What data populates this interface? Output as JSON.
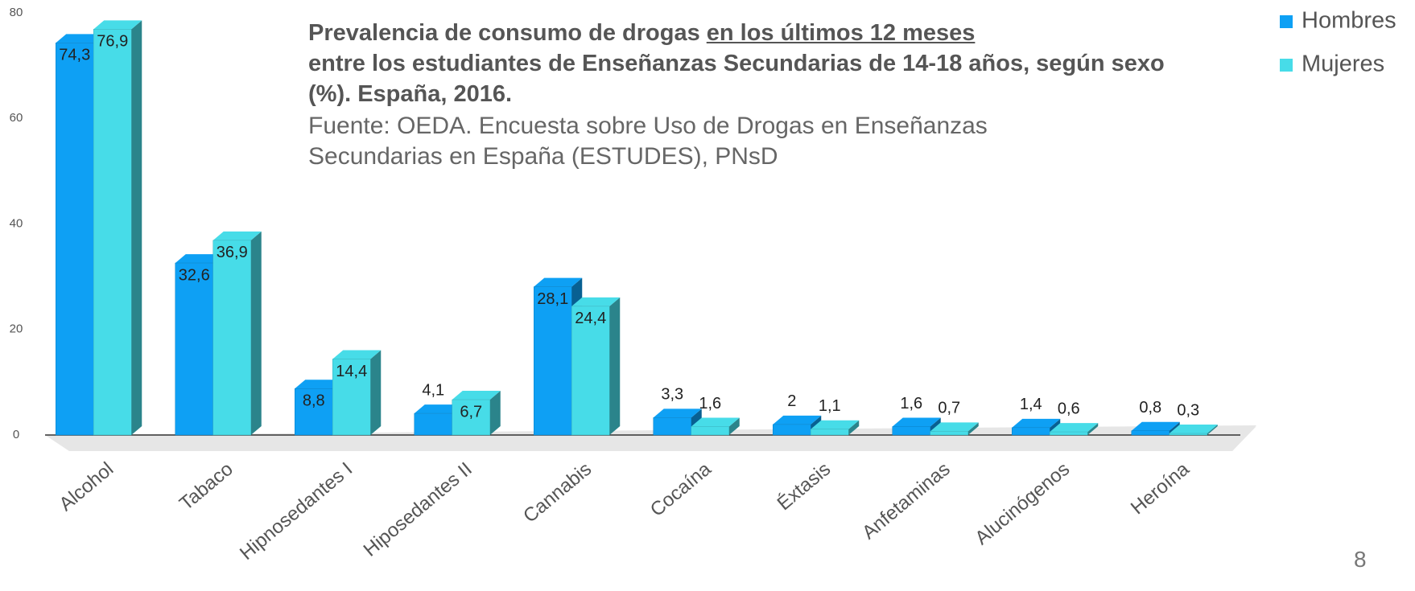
{
  "chart_data": {
    "type": "bar3d",
    "title": [
      "Prevalencia de consumo de drogas",
      "en los últimos 12 meses",
      "entre los estudiantes de Enseñanzas Secundarias de 14-18 años, según sexo (%). España, 2016."
    ],
    "subtitle": "Fuente: OEDA. Encuesta sobre Uso de Drogas en Enseñanzas Secundarias en España (ESTUDES), PNsD",
    "categories": [
      "Alcohol",
      "Tabaco",
      "Hipnosedantes I",
      "Hiposedantes II",
      "Cannabis",
      "Cocaína",
      "Éxtasis",
      "Anfetaminas",
      "Alucinógenos",
      "Heroína"
    ],
    "series": [
      {
        "name": "Hombres",
        "color": "#0ea0f4",
        "values": [
          74.3,
          32.6,
          8.8,
          4.1,
          28.1,
          3.3,
          2,
          1.6,
          1.4,
          0.8
        ],
        "value_labels": [
          "74,3",
          "32,6",
          "8,8",
          "4,1",
          "28,1",
          "3,3",
          "2",
          "1,6",
          "1,4",
          "0,8"
        ]
      },
      {
        "name": "Mujeres",
        "color": "#47dce8",
        "values": [
          76.9,
          36.9,
          14.4,
          6.7,
          24.4,
          1.6,
          1.1,
          0.7,
          0.6,
          0.3
        ],
        "value_labels": [
          "76,9",
          "36,9",
          "14,4",
          "6,7",
          "24,4",
          "1,6",
          "1,1",
          "0,7",
          "0,6",
          "0,3"
        ]
      }
    ],
    "ylim": [
      0,
      80
    ],
    "yticks": [
      0,
      20,
      40,
      60,
      80
    ],
    "legend": "top-right"
  },
  "page_number": "8"
}
